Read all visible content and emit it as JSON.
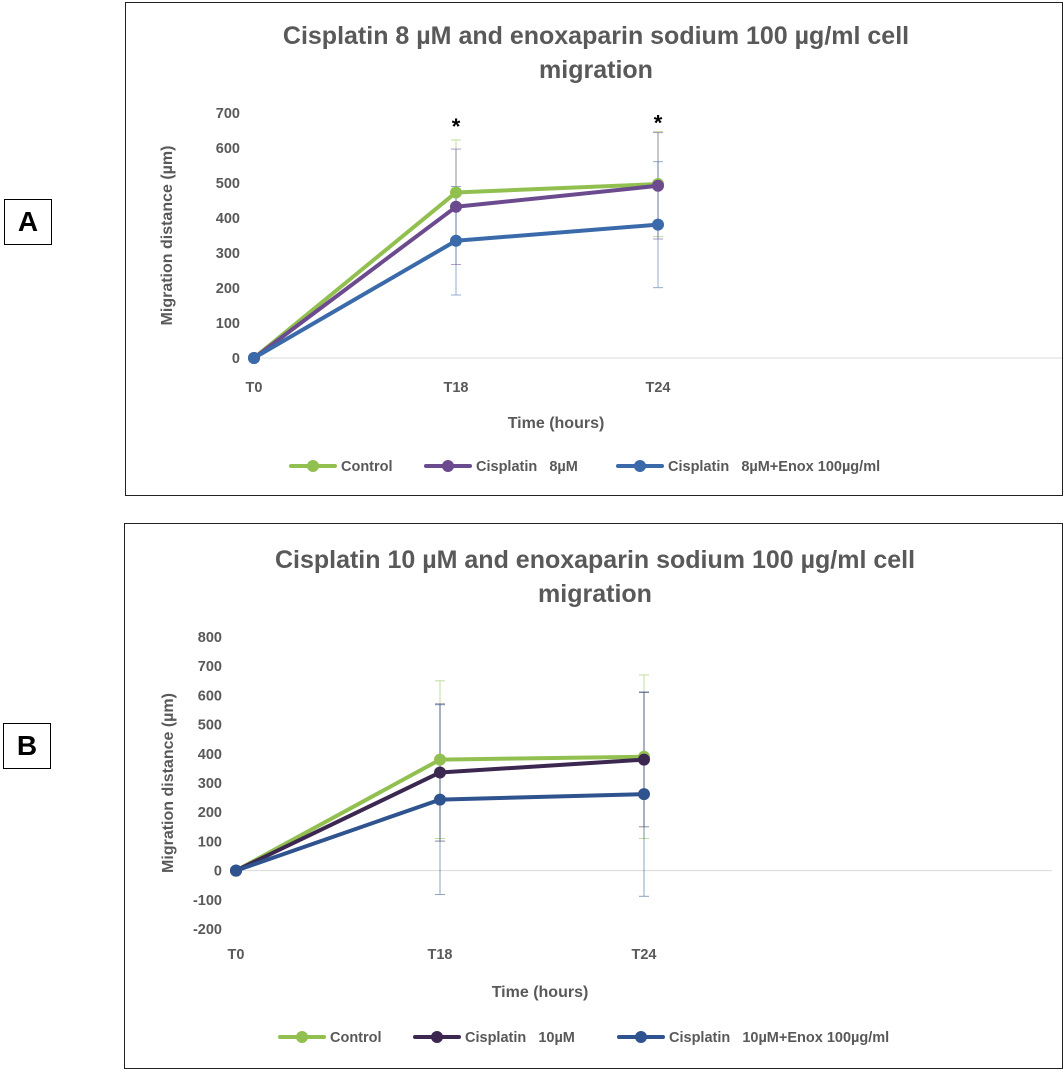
{
  "panel_labels": [
    "A",
    "B"
  ],
  "chart_data": [
    {
      "type": "line",
      "panel": "A",
      "title_lines": [
        "Cisplatin 8 µM and enoxaparin sodium 100 µg/ml cell",
        "migration"
      ],
      "xlabel": "Time (hours)",
      "ylabel": "Migration distance (µm)",
      "categories": [
        "T0",
        "T18",
        "T24"
      ],
      "x_slots": 4,
      "ylim": [
        0,
        700
      ],
      "yticks": [
        0,
        100,
        200,
        300,
        400,
        500,
        600,
        700
      ],
      "grid": false,
      "legend_position": "bottom",
      "series": [
        {
          "name": "Control",
          "color": "#92c050",
          "values": [
            0,
            473,
            497
          ],
          "error": [
            0,
            150,
            150
          ]
        },
        {
          "name": "Cisplatin   8µM",
          "color": "#6b4b8e",
          "values": [
            0,
            432,
            492
          ],
          "error": [
            0,
            165,
            152
          ]
        },
        {
          "name": "Cisplatin   8µM+Enox 100µg/ml",
          "color": "#3a6aaa",
          "values": [
            0,
            335,
            381
          ],
          "error": [
            0,
            155,
            180
          ]
        }
      ],
      "annotations": [
        {
          "text": "*",
          "category": "T18",
          "y": 640
        },
        {
          "text": "*",
          "category": "T24",
          "y": 650
        }
      ]
    },
    {
      "type": "line",
      "panel": "B",
      "title_lines": [
        "Cisplatin 10 µM and enoxaparin sodium 100 µg/ml cell",
        "migration"
      ],
      "xlabel": "Time (hours)",
      "ylabel": "Migration distance (µm)",
      "categories": [
        "T0",
        "T18",
        "T24"
      ],
      "x_slots": 4,
      "ylim": [
        -200,
        800
      ],
      "yticks": [
        -200,
        -100,
        0,
        100,
        200,
        300,
        400,
        500,
        600,
        700,
        800
      ],
      "grid": false,
      "legend_position": "bottom",
      "series": [
        {
          "name": "Control",
          "color": "#92c050",
          "values": [
            0,
            380,
            390
          ],
          "error": [
            0,
            270,
            280
          ]
        },
        {
          "name": "Cisplatin   10µM",
          "color": "#3c2750",
          "values": [
            0,
            336,
            380
          ],
          "error": [
            0,
            235,
            230
          ]
        },
        {
          "name": "Cisplatin   10µM+Enox 100µg/ml",
          "color": "#2e538f",
          "values": [
            0,
            243,
            262
          ],
          "error": [
            0,
            325,
            350
          ]
        }
      ],
      "annotations": []
    }
  ]
}
